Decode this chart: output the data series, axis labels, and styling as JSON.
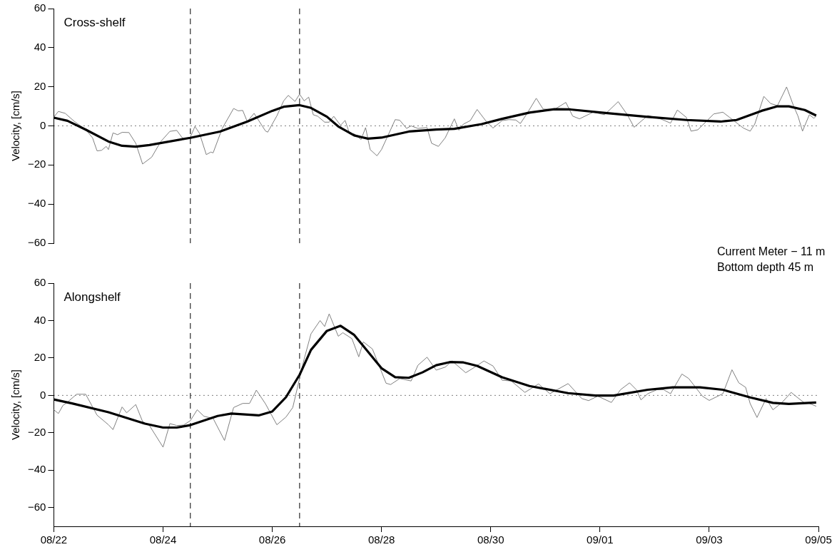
{
  "chart_data": [
    {
      "type": "line",
      "title": "Cross-shelf",
      "ylabel": "Velocity, [cm/s]",
      "tick_labels": "y",
      "legend": false,
      "grid": false,
      "marker": "none",
      "xlim": [
        "--08-22",
        "--09-05"
      ],
      "ylim": [
        -60,
        60
      ],
      "yticks": [
        -60,
        -40,
        -20,
        0,
        20,
        40,
        60
      ],
      "ref_lines": [
        {
          "axis": "y",
          "value": 0,
          "color": "#000000",
          "line_style": "dotted"
        },
        {
          "axis": "x",
          "value": "--08-24T12:00",
          "color": "#000000",
          "line_style": "dashed"
        },
        {
          "axis": "x",
          "value": "--08-26T12:00",
          "color": "#000000",
          "line_style": "dashed"
        }
      ],
      "annotations": [
        "Current Meter − 11 m",
        "Bottom depth 45 m"
      ],
      "series": [
        {
          "color": "#808080",
          "x": [
            "--08-22T00:00",
            "--08-22T02:00",
            "--08-22T05:00",
            "--08-22T09:00",
            "--08-22T14:00",
            "--08-22T17:00",
            "--08-22T19:00",
            "--08-22T21:00",
            "--08-22T23:00",
            "--08-23T00:00",
            "--08-23T02:00",
            "--08-23T04:00",
            "--08-23T06:00",
            "--08-23T09:00",
            "--08-23T12:00",
            "--08-23T15:00",
            "--08-23T19:00",
            "--08-23T23:00",
            "--08-24T03:00",
            "--08-24T06:00",
            "--08-24T09:00",
            "--08-24T12:00",
            "--08-24T14:00",
            "--08-24T16:00",
            "--08-24T19:00",
            "--08-24T21:00",
            "--08-24T22:00",
            "--08-25T02:00",
            "--08-25T07:00",
            "--08-25T09:00",
            "--08-25T11:00",
            "--08-25T13:00",
            "--08-25T16:00",
            "--08-25T21:00",
            "--08-25T22:00",
            "--08-26T02:00",
            "--08-26T05:00",
            "--08-26T07:00",
            "--08-26T10:00",
            "--08-26T12:00",
            "--08-26T14:00",
            "--08-26T16:00",
            "--08-26T18:00",
            "--08-26T20:00",
            "--08-26T23:00",
            "--08-27T01:00",
            "--08-27T03:00",
            "--08-27T06:00",
            "--08-27T08:00",
            "--08-27T10:00",
            "--08-27T12:00",
            "--08-27T15:00",
            "--08-27T17:00",
            "--08-27T19:00",
            "--08-27T22:00",
            "--08-28T00:00",
            "--08-28T03:00",
            "--08-28T06:00",
            "--08-28T08:00",
            "--08-28T11:00",
            "--08-28T13:00",
            "--08-28T16:00",
            "--08-28T20:00",
            "--08-28T22:00",
            "--08-29T01:00",
            "--08-29T04:00",
            "--08-29T08:00",
            "--08-29T10:00",
            "--08-29T12:00",
            "--08-29T15:00",
            "--08-29T18:00",
            "--08-29T22:00",
            "--08-30T01:00",
            "--08-30T05:00",
            "--08-30T08:00",
            "--08-30T11:00",
            "--08-30T13:00",
            "--08-30T16:00",
            "--08-30T20:00",
            "--08-30T23:00",
            "--08-31T04:00",
            "--08-31T09:00",
            "--08-31T12:00",
            "--08-31T15:00",
            "--08-31T21:00",
            "--09-01T02:00",
            "--09-01T08:00",
            "--09-01T12:00",
            "--09-01T15:00",
            "--09-01T21:00",
            "--09-02T03:00",
            "--09-02T07:00",
            "--09-02T10:00",
            "--09-02T14:00",
            "--09-02T16:00",
            "--09-02T19:00",
            "--09-03T02:00",
            "--09-03T06:00",
            "--09-03T09:00",
            "--09-03T15:00",
            "--09-03T18:00",
            "--09-03T20:00",
            "--09-04T00:00",
            "--09-04T03:00",
            "--09-04T06:00",
            "--09-04T10:00",
            "--09-04T13:00",
            "--09-04T15:00",
            "--09-04T17:00",
            "--09-04T20:00",
            "--09-04T22:00",
            "--09-04T23:00"
          ],
          "values": [
            4.5,
            7.4,
            6.4,
            2.3,
            -1.9,
            -6.1,
            -12.8,
            -12.5,
            -10.5,
            -12.1,
            -3.6,
            -4.5,
            -3.3,
            -3.4,
            -8.9,
            -19.5,
            -16,
            -8.0,
            -2.8,
            -2.3,
            -7.0,
            -5.7,
            -0.3,
            -3.8,
            -14.7,
            -13.4,
            -13.8,
            -1.3,
            8.9,
            7.7,
            7.9,
            2.2,
            6.4,
            -2.6,
            -3.2,
            5.1,
            12.8,
            15.6,
            12.5,
            16.2,
            12.8,
            14.7,
            5.7,
            4.9,
            1.9,
            1.9,
            4.9,
            0.3,
            2.8,
            -4.1,
            -4.1,
            -7.0,
            -0.9,
            -12.1,
            -15.3,
            -12.1,
            -4.5,
            3.2,
            2.9,
            -1.3,
            0,
            -1.3,
            -0.9,
            -8.9,
            -10.5,
            -6.1,
            3.6,
            -2.2,
            0.9,
            2.7,
            8.4,
            2.3,
            -1.1,
            2.7,
            3.2,
            3.0,
            1.2,
            6.4,
            14.1,
            8.6,
            8.4,
            12.0,
            5.0,
            3.6,
            7.0,
            5.7,
            12.4,
            5.7,
            -0.7,
            5.3,
            3.4,
            1.4,
            8.1,
            4.3,
            -2.7,
            -2.0,
            6.1,
            7.0,
            4.3,
            -1.1,
            -2.7,
            0.9,
            15.1,
            11.4,
            10.4,
            19.9,
            10.4,
            5.0,
            -2.7,
            5.7,
            3.9,
            5.0
          ]
        },
        {
          "color": "#000000",
          "x": [
            "--08-22T00:00",
            "--08-22T06:00",
            "--08-22T14:00",
            "--08-23T00:00",
            "--08-23T06:00",
            "--08-23T12:00",
            "--08-23T18:00",
            "--08-24T12:00",
            "--08-25T01:00",
            "--08-25T13:00",
            "--08-26T00:00",
            "--08-26T05:00",
            "--08-26T12:00",
            "--08-26T17:00",
            "--08-27T00:00",
            "--08-27T05:00",
            "--08-27T12:00",
            "--08-27T18:00",
            "--08-28T00:00",
            "--08-28T12:00",
            "--08-29T00:00",
            "--08-29T08:00",
            "--08-29T20:00",
            "--08-30T05:00",
            "--08-30T17:00",
            "--08-31T04:00",
            "--08-31T11:00",
            "--09-01T04:00",
            "--09-01T21:00",
            "--09-02T14:00",
            "--09-03T05:00",
            "--09-03T12:00",
            "--09-03T23:00",
            "--09-04T06:00",
            "--09-04T11:00",
            "--09-04T18:00",
            "--09-04T23:00"
          ],
          "values": [
            4.2,
            2.6,
            -1.9,
            -8.0,
            -10.2,
            -10.6,
            -9.8,
            -6.1,
            -2.9,
            2.2,
            7.7,
            9.8,
            10.6,
            9.2,
            4.7,
            -0.3,
            -4.9,
            -6.5,
            -6.0,
            -2.9,
            -1.9,
            -1.5,
            0.9,
            3.6,
            6.8,
            8.5,
            8.4,
            6.4,
            4.6,
            3.0,
            2.2,
            3.0,
            7.7,
            10.0,
            10.0,
            8.1,
            5.3
          ]
        }
      ]
    },
    {
      "type": "line",
      "title": "Alongshelf",
      "ylabel": "Velocity, [cm/s]",
      "legend": false,
      "grid": false,
      "marker": "none",
      "xlim": [
        "--08-22",
        "--09-05"
      ],
      "xticks": [
        {
          "value": "--08-22",
          "label": "08/22"
        },
        {
          "value": "--08-24",
          "label": "08/24"
        },
        {
          "value": "--08-26",
          "label": "08/26"
        },
        {
          "value": "--08-28",
          "label": "08/28"
        },
        {
          "value": "--08-30",
          "label": "08/30"
        },
        {
          "value": "--09-01",
          "label": "09/01"
        },
        {
          "value": "--09-03",
          "label": "09/03"
        },
        {
          "value": "--09-05",
          "label": "09/05"
        }
      ],
      "ylim": [
        -70,
        60
      ],
      "yticks": [
        -60,
        -40,
        -20,
        0,
        20,
        40,
        60
      ],
      "ref_lines": [
        {
          "axis": "y",
          "value": 0,
          "color": "#000000",
          "line_style": "dotted"
        },
        {
          "axis": "x",
          "value": "--08-24T12:00",
          "color": "#000000",
          "line_style": "dashed"
        },
        {
          "axis": "x",
          "value": "--08-26T12:00",
          "color": "#000000",
          "line_style": "dashed"
        }
      ],
      "series": [
        {
          "color": "#808080",
          "x": [
            "--08-22T00:00",
            "--08-22T02:00",
            "--08-22T04:00",
            "--08-22T06:00",
            "--08-22T10:00",
            "--08-22T14:00",
            "--08-22T19:00",
            "--08-23T00:00",
            "--08-23T02:00",
            "--08-23T06:00",
            "--08-23T08:00",
            "--08-23T12:00",
            "--08-23T15:00",
            "--08-23T18:00",
            "--08-24T00:00",
            "--08-24T03:00",
            "--08-24T06:00",
            "--08-24T09:00",
            "--08-24T12:00",
            "--08-24T15:00",
            "--08-24T18:00",
            "--08-24T22:00",
            "--08-25T03:00",
            "--08-25T07:00",
            "--08-25T11:00",
            "--08-25T14:00",
            "--08-25T17:00",
            "--08-25T21:00",
            "--08-26T02:00",
            "--08-26T06:00",
            "--08-26T09:00",
            "--08-26T11:00",
            "--08-26T14:00",
            "--08-26T17:00",
            "--08-26T21:00",
            "--08-26T23:00",
            "--08-27T01:00",
            "--08-27T05:00",
            "--08-27T07:00",
            "--08-27T11:00",
            "--08-27T14:00",
            "--08-27T16:00",
            "--08-27T20:00",
            "--08-28T02:00",
            "--08-28T04:00",
            "--08-28T08:00",
            "--08-28T13:00",
            "--08-28T16:00",
            "--08-28T20:00",
            "--08-29T00:00",
            "--08-29T04:00",
            "--08-29T07:00",
            "--08-29T13:00",
            "--08-29T17:00",
            "--08-29T21:00",
            "--08-30T01:00",
            "--08-30T05:00",
            "--08-30T09:00",
            "--08-30T15:00",
            "--08-30T21:00",
            "--08-31T02:00",
            "--08-31T10:00",
            "--08-31T16:00",
            "--08-31T19:00",
            "--08-31T23:00",
            "--09-01T05:00",
            "--09-01T09:00",
            "--09-01T13:00",
            "--09-01T16:00",
            "--09-01T18:00",
            "--09-01T21:00",
            "--09-02T01:00",
            "--09-02T04:00",
            "--09-02T07:00",
            "--09-02T12:00",
            "--09-02T15:00",
            "--09-02T21:00",
            "--09-03T00:00",
            "--09-03T06:00",
            "--09-03T10:00",
            "--09-03T13:00",
            "--09-03T16:00",
            "--09-03T18:00",
            "--09-03T21:00",
            "--09-04T01:00",
            "--09-04T04:00",
            "--09-04T08:00",
            "--09-04T12:00",
            "--09-04T14:00",
            "--09-04T18:00",
            "--09-04T19:00",
            "--09-04T23:00"
          ],
          "values": [
            -7.7,
            -9.7,
            -5.4,
            -3.6,
            0.6,
            0.6,
            -10.6,
            -15.7,
            -18.3,
            -6.2,
            -9.3,
            -4.9,
            -14.0,
            -16.1,
            -27.7,
            -15.1,
            -16.1,
            -15.9,
            -13.5,
            -7.7,
            -11.2,
            -12.3,
            -24.1,
            -6.5,
            -4.3,
            -4.3,
            2.8,
            -4.5,
            -15.7,
            -11.6,
            -6.5,
            3.9,
            19.4,
            32.9,
            40.0,
            36.8,
            43.6,
            31.6,
            33.5,
            30.3,
            20.6,
            28.6,
            24.8,
            6.5,
            5.8,
            9.0,
            7.7,
            16.1,
            20.4,
            13.5,
            15.1,
            18.4,
            12.1,
            15.1,
            18.4,
            15.7,
            8.1,
            7.7,
            1.6,
            6.1,
            0.9,
            6.3,
            -1.7,
            -2.8,
            -0.4,
            -3.8,
            3.0,
            6.7,
            3.0,
            -2.4,
            0.9,
            3.0,
            3.0,
            0.9,
            11.4,
            9.0,
            -0.4,
            -2.7,
            0.9,
            13.7,
            6.7,
            4.3,
            -4.4,
            -11.8,
            -1.7,
            -7.7,
            -3.8,
            1.6,
            -0.4,
            -4.2,
            -3.8,
            -5.8
          ]
        },
        {
          "color": "#000000",
          "x": [
            "--08-22T00:00",
            "--08-22T08:00",
            "--08-23T00:00",
            "--08-23T16:00",
            "--08-24T00:00",
            "--08-24T06:00",
            "--08-24T12:00",
            "--08-25T00:00",
            "--08-25T06:00",
            "--08-25T18:00",
            "--08-26T00:00",
            "--08-26T06:00",
            "--08-26T12:00",
            "--08-26T17:00",
            "--08-27T00:00",
            "--08-27T06:00",
            "--08-27T12:00",
            "--08-28T00:00",
            "--08-28T06:00",
            "--08-28T12:00",
            "--08-28T18:00",
            "--08-29T00:00",
            "--08-29T06:00",
            "--08-29T12:00",
            "--08-29T18:00",
            "--08-30T05:00",
            "--08-30T17:00",
            "--08-31T10:00",
            "--08-31T22:00",
            "--09-01T06:00",
            "--09-01T21:00",
            "--09-02T08:00",
            "--09-02T20:00",
            "--09-03T06:00",
            "--09-03T18:00",
            "--09-04T04:00",
            "--09-04T11:00",
            "--09-04T23:00"
          ],
          "values": [
            -2.2,
            -4.3,
            -9.0,
            -15.1,
            -17.2,
            -17.2,
            -15.9,
            -11.0,
            -9.7,
            -10.7,
            -8.6,
            -1.0,
            11.0,
            24.3,
            34.5,
            37.2,
            32.3,
            14.5,
            9.7,
            9.4,
            12.3,
            16.1,
            17.8,
            17.6,
            15.8,
            9.7,
            5.0,
            1.2,
            -0.1,
            -0.1,
            3.0,
            4.3,
            4.3,
            3.0,
            -1.1,
            -4.0,
            -4.6,
            -3.8
          ]
        }
      ]
    }
  ]
}
